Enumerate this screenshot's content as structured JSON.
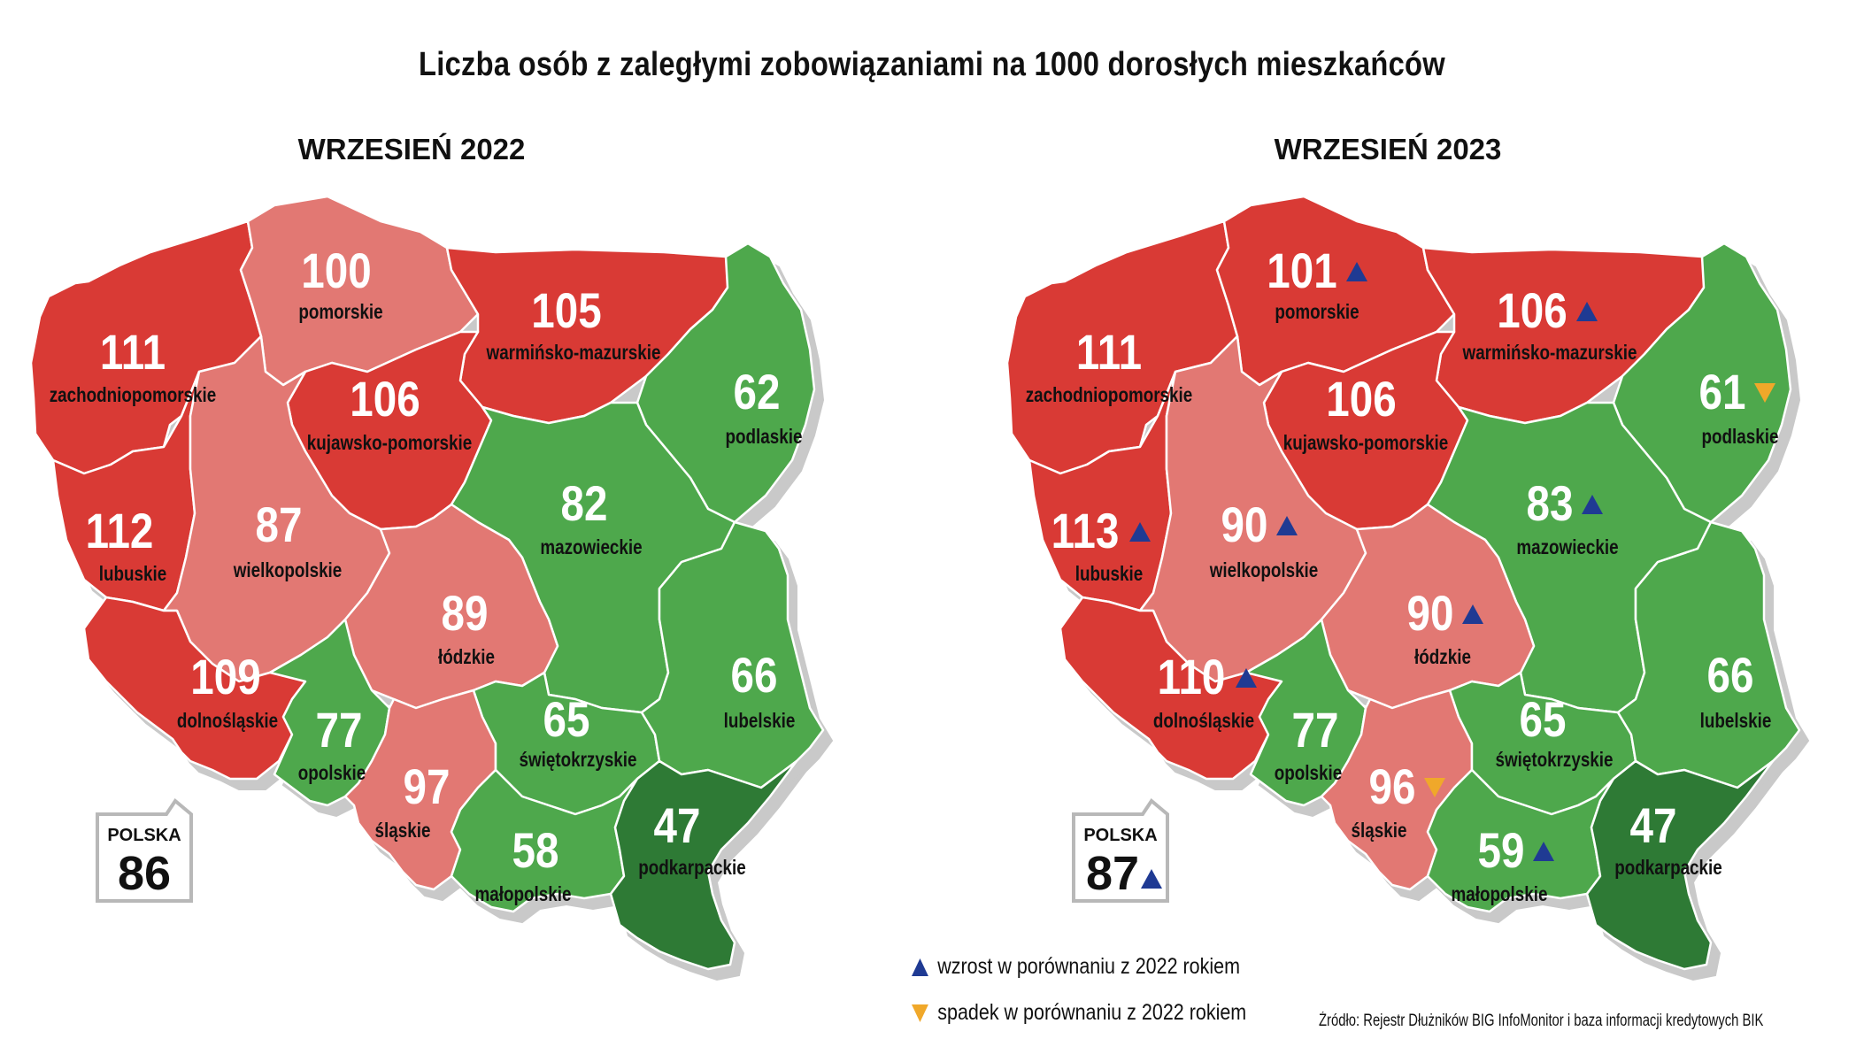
{
  "title": "Liczba osób z zaległymi zobowiązaniami na 1000 dorosłych mieszkańców",
  "colors": {
    "high_red": "#d93a35",
    "mid_pink": "#e27873",
    "green": "#4ea84c",
    "dark_green": "#2e7a35",
    "shadow": "#c9c9c9",
    "increase": "#1f3a93",
    "decrease": "#f0a82a"
  },
  "maps": [
    {
      "heading": "WRZESIEŃ 2022",
      "polska": {
        "label": "POLSKA",
        "value": "86",
        "trend": "none"
      },
      "regions": [
        {
          "id": "zachodniopomorskie",
          "name": "zachodniopomorskie",
          "value": "111",
          "color": "high_red",
          "trend": "none"
        },
        {
          "id": "pomorskie",
          "name": "pomorskie",
          "value": "100",
          "color": "mid_pink",
          "trend": "none"
        },
        {
          "id": "warminsko-mazurskie",
          "name": "warmińsko-mazurskie",
          "value": "105",
          "color": "high_red",
          "trend": "none"
        },
        {
          "id": "kujawsko-pomorskie",
          "name": "kujawsko-pomorskie",
          "value": "106",
          "color": "high_red",
          "trend": "none"
        },
        {
          "id": "podlaskie",
          "name": "podlaskie",
          "value": "62",
          "color": "green",
          "trend": "none"
        },
        {
          "id": "lubuskie",
          "name": "lubuskie",
          "value": "112",
          "color": "high_red",
          "trend": "none"
        },
        {
          "id": "wielkopolskie",
          "name": "wielkopolskie",
          "value": "87",
          "color": "mid_pink",
          "trend": "none"
        },
        {
          "id": "mazowieckie",
          "name": "mazowieckie",
          "value": "82",
          "color": "green",
          "trend": "none"
        },
        {
          "id": "lodzkie",
          "name": "łódzkie",
          "value": "89",
          "color": "mid_pink",
          "trend": "none"
        },
        {
          "id": "dolnoslaskie",
          "name": "dolnośląskie",
          "value": "109",
          "color": "high_red",
          "trend": "none"
        },
        {
          "id": "opolskie",
          "name": "opolskie",
          "value": "77",
          "color": "green",
          "trend": "none"
        },
        {
          "id": "slaskie",
          "name": "śląskie",
          "value": "97",
          "color": "mid_pink",
          "trend": "none"
        },
        {
          "id": "swietokrzyskie",
          "name": "świętokrzyskie",
          "value": "65",
          "color": "green",
          "trend": "none"
        },
        {
          "id": "lubelskie",
          "name": "lubelskie",
          "value": "66",
          "color": "green",
          "trend": "none"
        },
        {
          "id": "malopolskie",
          "name": "małopolskie",
          "value": "58",
          "color": "green",
          "trend": "none"
        },
        {
          "id": "podkarpackie",
          "name": "podkarpackie",
          "value": "47",
          "color": "dark_green",
          "trend": "none"
        }
      ]
    },
    {
      "heading": "WRZESIEŃ 2023",
      "polska": {
        "label": "POLSKA",
        "value": "87",
        "trend": "up"
      },
      "regions": [
        {
          "id": "zachodniopomorskie",
          "name": "zachodniopomorskie",
          "value": "111",
          "color": "high_red",
          "trend": "none"
        },
        {
          "id": "pomorskie",
          "name": "pomorskie",
          "value": "101",
          "color": "high_red",
          "trend": "up"
        },
        {
          "id": "warminsko-mazurskie",
          "name": "warmińsko-mazurskie",
          "value": "106",
          "color": "high_red",
          "trend": "up"
        },
        {
          "id": "kujawsko-pomorskie",
          "name": "kujawsko-pomorskie",
          "value": "106",
          "color": "high_red",
          "trend": "none"
        },
        {
          "id": "podlaskie",
          "name": "podlaskie",
          "value": "61",
          "color": "green",
          "trend": "down"
        },
        {
          "id": "lubuskie",
          "name": "lubuskie",
          "value": "113",
          "color": "high_red",
          "trend": "up"
        },
        {
          "id": "wielkopolskie",
          "name": "wielkopolskie",
          "value": "90",
          "color": "mid_pink",
          "trend": "up"
        },
        {
          "id": "mazowieckie",
          "name": "mazowieckie",
          "value": "83",
          "color": "green",
          "trend": "up"
        },
        {
          "id": "lodzkie",
          "name": "łódzkie",
          "value": "90",
          "color": "mid_pink",
          "trend": "up"
        },
        {
          "id": "dolnoslaskie",
          "name": "dolnośląskie",
          "value": "110",
          "color": "high_red",
          "trend": "up"
        },
        {
          "id": "opolskie",
          "name": "opolskie",
          "value": "77",
          "color": "green",
          "trend": "none"
        },
        {
          "id": "slaskie",
          "name": "śląskie",
          "value": "96",
          "color": "mid_pink",
          "trend": "down"
        },
        {
          "id": "swietokrzyskie",
          "name": "świętokrzyskie",
          "value": "65",
          "color": "green",
          "trend": "none"
        },
        {
          "id": "lubelskie",
          "name": "lubelskie",
          "value": "66",
          "color": "green",
          "trend": "none"
        },
        {
          "id": "malopolskie",
          "name": "małopolskie",
          "value": "59",
          "color": "green",
          "trend": "up"
        },
        {
          "id": "podkarpackie",
          "name": "podkarpackie",
          "value": "47",
          "color": "dark_green",
          "trend": "none"
        }
      ]
    }
  ],
  "legend": {
    "increase": "wzrost w porównaniu z 2022 rokiem",
    "decrease": "spadek w porównaniu z 2022 rokiem"
  },
  "source": "Źródło: Rejestr Dłużników BIG InfoMonitor i baza informacji kredytowych BIK"
}
